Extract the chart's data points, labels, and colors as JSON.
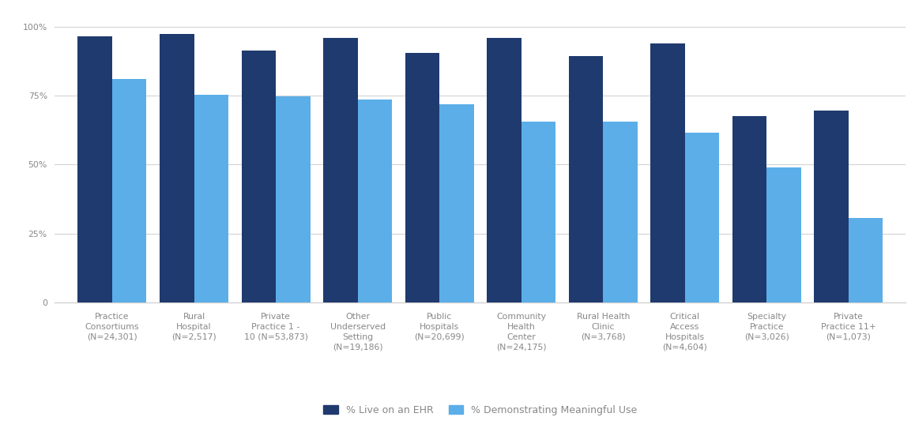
{
  "categories": [
    "Practice\nConsortiums\n(N=24,301)",
    "Rural\nHospital\n(N=2,517)",
    "Private\nPractice 1 -\n10 (N=53,873)",
    "Other\nUnderserved\nSetting\n(N=19,186)",
    "Public\nHospitals\n(N=20,699)",
    "Community\nHealth\nCenter\n(N=24,175)",
    "Rural Health\nClinic\n(N=3,768)",
    "Critical\nAccess\nHospitals\n(N=4,604)",
    "Specialty\nPractice\n(N=3,026)",
    "Private\nPractice 11+\n(N=1,073)"
  ],
  "live_on_ehr": [
    0.965,
    0.975,
    0.915,
    0.96,
    0.905,
    0.96,
    0.895,
    0.94,
    0.675,
    0.695
  ],
  "demonstrating_mu": [
    0.81,
    0.752,
    0.748,
    0.737,
    0.718,
    0.655,
    0.655,
    0.615,
    0.49,
    0.305
  ],
  "color_ehr": "#1f3a6e",
  "color_mu": "#5baee8",
  "legend_ehr": "% Live on an EHR",
  "legend_mu": "% Demonstrating Meaningful Use",
  "yticks": [
    0,
    0.25,
    0.5,
    0.75,
    1.0
  ],
  "ytick_labels": [
    "0",
    "25%",
    "50%",
    "75%",
    "100%"
  ],
  "ylim": [
    0,
    1.05
  ],
  "bar_width": 0.42,
  "background_color": "#ffffff",
  "grid_color": "#d3d3d3",
  "tick_color": "#888888",
  "label_fontsize": 7.8,
  "legend_fontsize": 9.0
}
